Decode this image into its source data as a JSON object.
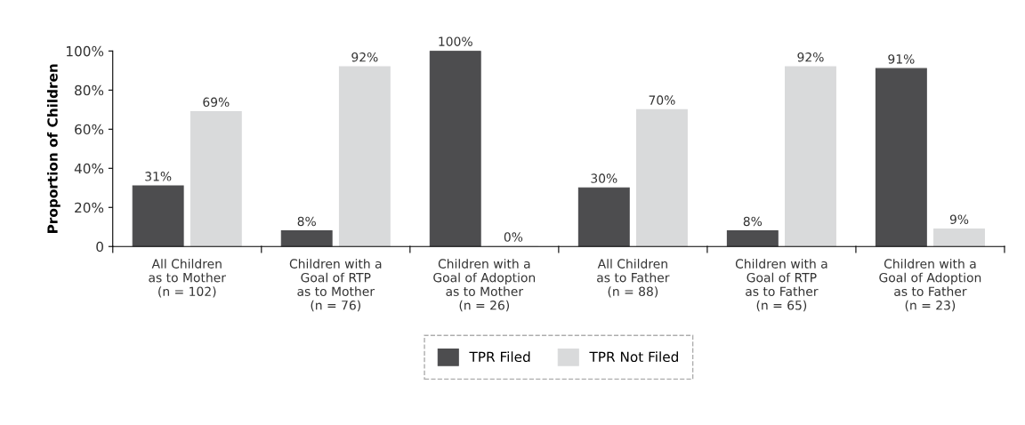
{
  "chart_data": {
    "type": "bar",
    "ylabel": "Proportion of Children",
    "categories": [
      "All Children\nas to Mother\n(n = 102)",
      "Children with a\nGoal of RTP\nas to Mother\n(n = 76)",
      "Children with a\nGoal of Adoption\nas to Mother\n(n = 26)",
      "All Children\nas to Father\n(n = 88)",
      "Children with a\nGoal of RTP\nas to Father\n(n = 65)",
      "Children with a\nGoal of Adoption\nas to Father\n(n = 23)"
    ],
    "series": [
      {
        "name": "TPR Filed",
        "color": "#4d4d4f",
        "values": [
          31,
          8,
          100,
          30,
          8,
          91
        ],
        "value_labels": [
          "31%",
          "8%",
          "100%",
          "30%",
          "8%",
          "91%"
        ]
      },
      {
        "name": "TPR Not Filed",
        "color": "#d9dadb",
        "values": [
          69,
          92,
          0,
          70,
          92,
          9
        ],
        "value_labels": [
          "69%",
          "92%",
          "0%",
          "70%",
          "92%",
          "9%"
        ]
      }
    ],
    "ylim": [
      0,
      100
    ],
    "yticks": [
      0,
      {
        "value": 20,
        "label": "20%"
      },
      {
        "value": 40,
        "label": "40%"
      },
      {
        "value": 60,
        "label": "60%"
      },
      {
        "value": 80,
        "label": "80%"
      },
      {
        "value": 100,
        "label": "100%"
      }
    ],
    "grid": false,
    "legend": "bottom"
  }
}
